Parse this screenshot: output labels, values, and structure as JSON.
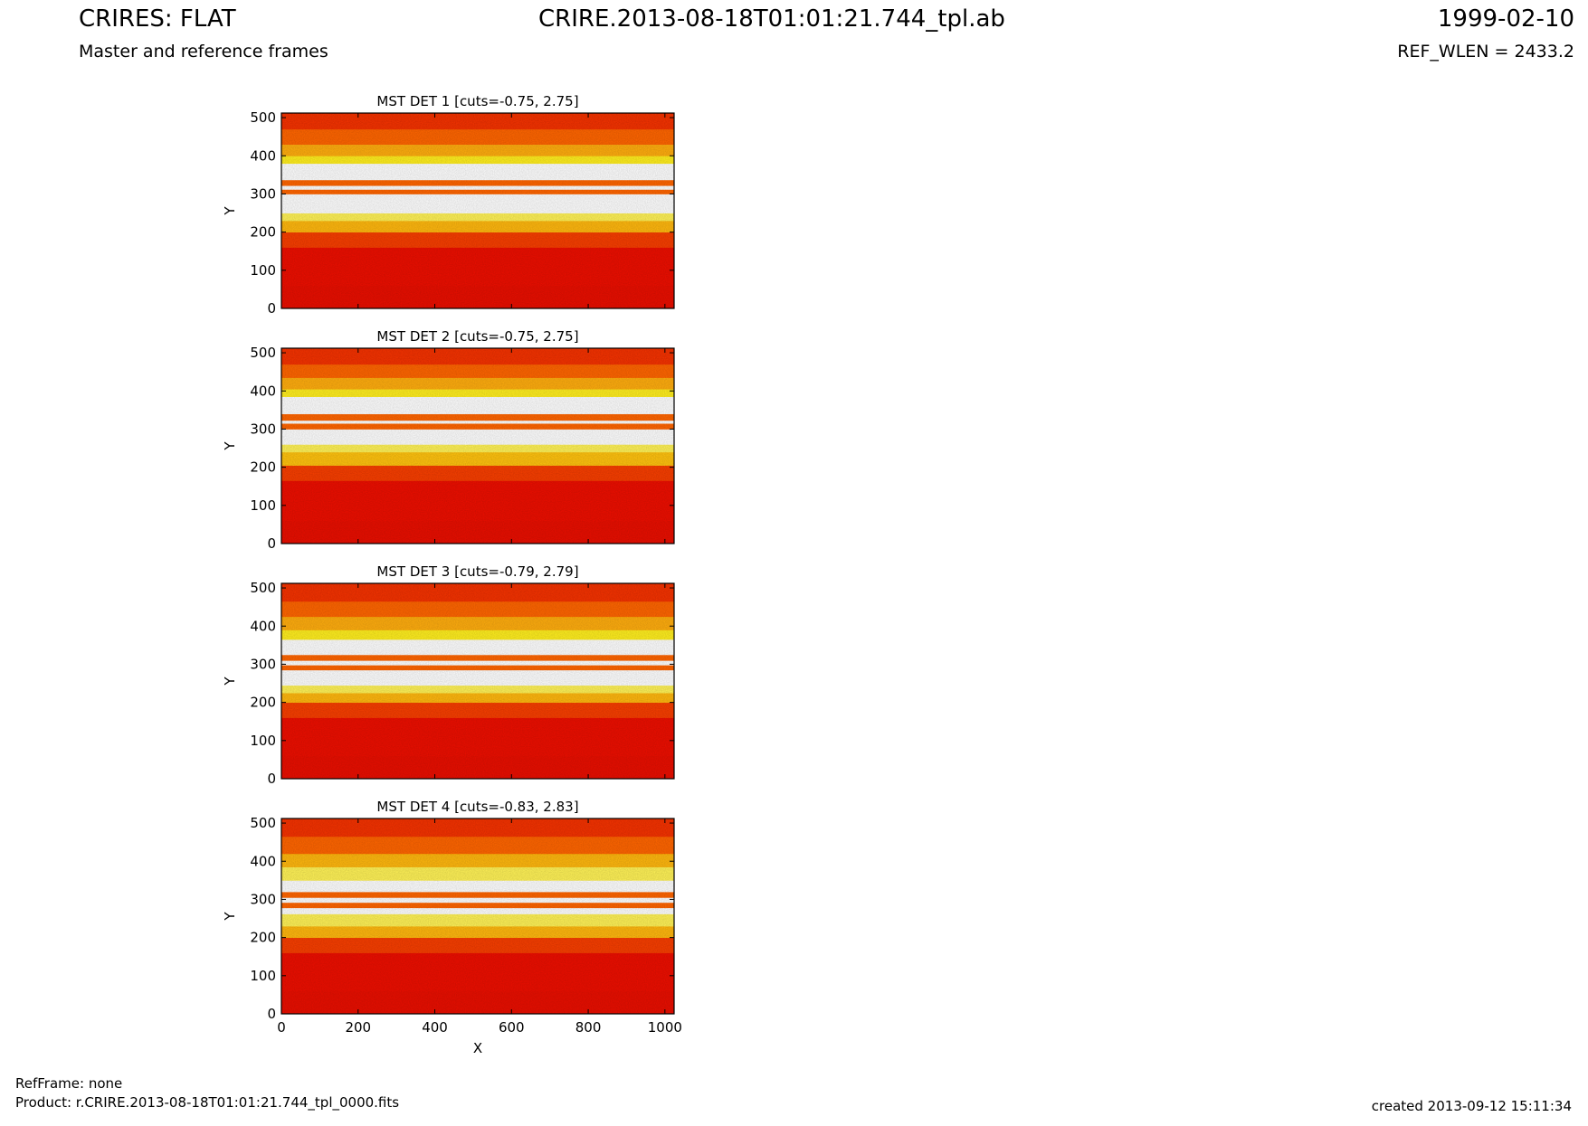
{
  "header": {
    "left_title": "CRIRES: FLAT",
    "left_subtitle": "Master and reference frames",
    "center_title": "CRIRE.2013-08-18T01:01:21.744_tpl.ab",
    "right_title": "1999-02-10",
    "right_subtitle": "REF_WLEN = 2433.2"
  },
  "footer": {
    "refframe": "RefFrame: none",
    "product": "Product: r.CRIRE.2013-08-18T01:01:21.744_tpl_0000.fits",
    "created": "created 2013-09-12 15:11:34"
  },
  "colors": {
    "dark_red": "#d40000",
    "red": "#ee1a00",
    "orange": "#ff6600",
    "yellow": "#ffee22",
    "white": "#ffffff"
  },
  "chart_data": [
    {
      "type": "heatmap",
      "title": "MST DET 1 [cuts=-0.75, 2.75]",
      "xlabel": "",
      "ylabel": "Y",
      "xlim": [
        0,
        1024
      ],
      "ylim": [
        0,
        512
      ],
      "xticks": [],
      "yticks": [
        0,
        100,
        200,
        300,
        400,
        500
      ],
      "colormap": "hot",
      "bands": [
        {
          "y0": 0,
          "y1": 60,
          "level": 0.28
        },
        {
          "y0": 60,
          "y1": 160,
          "level": 0.33
        },
        {
          "y0": 160,
          "y1": 200,
          "level": 0.45
        },
        {
          "y0": 200,
          "y1": 230,
          "level": 0.7
        },
        {
          "y0": 230,
          "y1": 250,
          "level": 0.85
        },
        {
          "y0": 250,
          "y1": 300,
          "level": 1.0
        },
        {
          "y0": 300,
          "y1": 312,
          "level": 0.55
        },
        {
          "y0": 312,
          "y1": 322,
          "level": 1.0
        },
        {
          "y0": 322,
          "y1": 337,
          "level": 0.55
        },
        {
          "y0": 337,
          "y1": 380,
          "level": 1.0
        },
        {
          "y0": 380,
          "y1": 400,
          "level": 0.8
        },
        {
          "y0": 400,
          "y1": 430,
          "level": 0.68
        },
        {
          "y0": 430,
          "y1": 470,
          "level": 0.55
        },
        {
          "y0": 470,
          "y1": 512,
          "level": 0.42
        }
      ]
    },
    {
      "type": "heatmap",
      "title": "MST DET 2 [cuts=-0.75, 2.75]",
      "xlabel": "",
      "ylabel": "Y",
      "xlim": [
        0,
        1024
      ],
      "ylim": [
        0,
        512
      ],
      "xticks": [],
      "yticks": [
        0,
        100,
        200,
        300,
        400,
        500
      ],
      "colormap": "hot",
      "bands": [
        {
          "y0": 0,
          "y1": 60,
          "level": 0.28
        },
        {
          "y0": 60,
          "y1": 165,
          "level": 0.33
        },
        {
          "y0": 165,
          "y1": 205,
          "level": 0.45
        },
        {
          "y0": 205,
          "y1": 240,
          "level": 0.72
        },
        {
          "y0": 240,
          "y1": 260,
          "level": 0.85
        },
        {
          "y0": 260,
          "y1": 300,
          "level": 1.0
        },
        {
          "y0": 300,
          "y1": 315,
          "level": 0.55
        },
        {
          "y0": 315,
          "y1": 323,
          "level": 1.0
        },
        {
          "y0": 323,
          "y1": 340,
          "level": 0.55
        },
        {
          "y0": 340,
          "y1": 385,
          "level": 1.0
        },
        {
          "y0": 385,
          "y1": 405,
          "level": 0.8
        },
        {
          "y0": 405,
          "y1": 435,
          "level": 0.68
        },
        {
          "y0": 435,
          "y1": 470,
          "level": 0.55
        },
        {
          "y0": 470,
          "y1": 512,
          "level": 0.42
        }
      ]
    },
    {
      "type": "heatmap",
      "title": "MST DET 3 [cuts=-0.79, 2.79]",
      "xlabel": "",
      "ylabel": "Y",
      "xlim": [
        0,
        1024
      ],
      "ylim": [
        0,
        512
      ],
      "xticks": [],
      "yticks": [
        0,
        100,
        200,
        300,
        400,
        500
      ],
      "colormap": "hot",
      "bands": [
        {
          "y0": 0,
          "y1": 60,
          "level": 0.28
        },
        {
          "y0": 60,
          "y1": 160,
          "level": 0.33
        },
        {
          "y0": 160,
          "y1": 200,
          "level": 0.45
        },
        {
          "y0": 200,
          "y1": 225,
          "level": 0.7
        },
        {
          "y0": 225,
          "y1": 245,
          "level": 0.85
        },
        {
          "y0": 245,
          "y1": 285,
          "level": 1.0
        },
        {
          "y0": 285,
          "y1": 298,
          "level": 0.55
        },
        {
          "y0": 298,
          "y1": 310,
          "level": 1.0
        },
        {
          "y0": 310,
          "y1": 325,
          "level": 0.55
        },
        {
          "y0": 325,
          "y1": 365,
          "level": 1.0
        },
        {
          "y0": 365,
          "y1": 390,
          "level": 0.8
        },
        {
          "y0": 390,
          "y1": 425,
          "level": 0.68
        },
        {
          "y0": 425,
          "y1": 465,
          "level": 0.55
        },
        {
          "y0": 465,
          "y1": 512,
          "level": 0.42
        }
      ]
    },
    {
      "type": "heatmap",
      "title": "MST DET 4 [cuts=-0.83, 2.83]",
      "xlabel": "X",
      "ylabel": "Y",
      "xlim": [
        0,
        1024
      ],
      "ylim": [
        0,
        512
      ],
      "xticks": [
        0,
        200,
        400,
        600,
        800,
        1000
      ],
      "yticks": [
        0,
        100,
        200,
        300,
        400,
        500
      ],
      "colormap": "hot",
      "bands": [
        {
          "y0": 0,
          "y1": 60,
          "level": 0.28
        },
        {
          "y0": 60,
          "y1": 160,
          "level": 0.33
        },
        {
          "y0": 160,
          "y1": 200,
          "level": 0.45
        },
        {
          "y0": 200,
          "y1": 230,
          "level": 0.7
        },
        {
          "y0": 230,
          "y1": 262,
          "level": 0.85
        },
        {
          "y0": 262,
          "y1": 278,
          "level": 1.0
        },
        {
          "y0": 278,
          "y1": 292,
          "level": 0.55
        },
        {
          "y0": 292,
          "y1": 305,
          "level": 1.0
        },
        {
          "y0": 305,
          "y1": 320,
          "level": 0.55
        },
        {
          "y0": 320,
          "y1": 350,
          "level": 1.0
        },
        {
          "y0": 350,
          "y1": 385,
          "level": 0.85
        },
        {
          "y0": 385,
          "y1": 420,
          "level": 0.7
        },
        {
          "y0": 420,
          "y1": 465,
          "level": 0.55
        },
        {
          "y0": 465,
          "y1": 512,
          "level": 0.42
        }
      ]
    }
  ]
}
